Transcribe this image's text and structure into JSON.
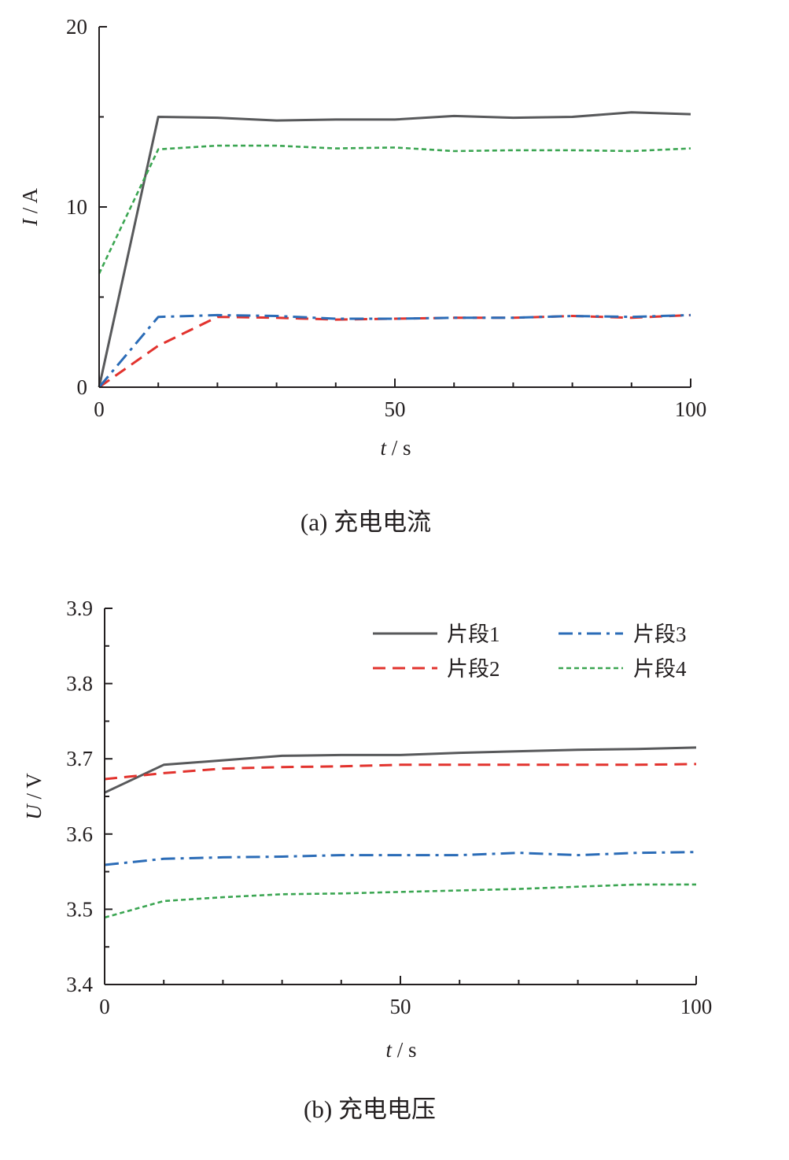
{
  "colors": {
    "axis": "#231f20",
    "series1": "#58595b",
    "series2": "#e2332e",
    "series3": "#2b6cb7",
    "series4": "#3aa551"
  },
  "legend": [
    "片段1",
    "片段2",
    "片段3",
    "片段4"
  ],
  "chart_data": [
    {
      "type": "line",
      "caption": "(a)  充电电流",
      "xlabel_var": "t",
      "xlabel_unit": " / s",
      "ylabel_var": "I",
      "ylabel_unit": " / A",
      "xlim": [
        0,
        100
      ],
      "ylim": [
        0,
        20
      ],
      "xticks": [
        0,
        50,
        100
      ],
      "yticks": [
        0,
        10,
        20
      ],
      "x": [
        0,
        10,
        20,
        30,
        40,
        50,
        60,
        70,
        80,
        90,
        100
      ],
      "series": [
        {
          "name": "片段1",
          "style": "solid",
          "values": [
            0,
            15.0,
            14.95,
            14.8,
            14.85,
            14.85,
            15.05,
            14.95,
            15.0,
            15.25,
            15.15
          ]
        },
        {
          "name": "片段2",
          "style": "dashed",
          "values": [
            0,
            2.3,
            3.9,
            3.85,
            3.75,
            3.8,
            3.85,
            3.85,
            3.95,
            3.85,
            4.0
          ]
        },
        {
          "name": "片段3",
          "style": "dashdot",
          "values": [
            0,
            3.9,
            4.0,
            3.95,
            3.8,
            3.8,
            3.85,
            3.85,
            3.95,
            3.9,
            4.0
          ]
        },
        {
          "name": "片段4",
          "style": "dotted",
          "values": [
            6.3,
            13.2,
            13.4,
            13.4,
            13.25,
            13.3,
            13.1,
            13.15,
            13.15,
            13.1,
            13.25
          ]
        }
      ]
    },
    {
      "type": "line",
      "caption": "(b)  充电电压",
      "xlabel_var": "t",
      "xlabel_unit": " / s",
      "ylabel_var": "U",
      "ylabel_unit": " / V",
      "xlim": [
        0,
        100
      ],
      "ylim": [
        3.4,
        3.9
      ],
      "xticks": [
        0,
        50,
        100
      ],
      "yticks": [
        3.4,
        3.5,
        3.6,
        3.7,
        3.8,
        3.9
      ],
      "x": [
        0,
        10,
        20,
        30,
        40,
        50,
        60,
        70,
        80,
        90,
        100
      ],
      "series": [
        {
          "name": "片段1",
          "style": "solid",
          "values": [
            3.655,
            3.692,
            3.698,
            3.704,
            3.705,
            3.705,
            3.708,
            3.71,
            3.712,
            3.713,
            3.715
          ]
        },
        {
          "name": "片段2",
          "style": "dashed",
          "values": [
            3.673,
            3.681,
            3.687,
            3.689,
            3.69,
            3.692,
            3.692,
            3.692,
            3.692,
            3.692,
            3.693
          ]
        },
        {
          "name": "片段3",
          "style": "dashdot",
          "values": [
            3.559,
            3.567,
            3.569,
            3.57,
            3.572,
            3.572,
            3.572,
            3.575,
            3.572,
            3.575,
            3.576
          ]
        },
        {
          "name": "片段4",
          "style": "dotted",
          "values": [
            3.489,
            3.511,
            3.516,
            3.52,
            3.521,
            3.523,
            3.525,
            3.527,
            3.53,
            3.533,
            3.533
          ]
        }
      ]
    }
  ]
}
